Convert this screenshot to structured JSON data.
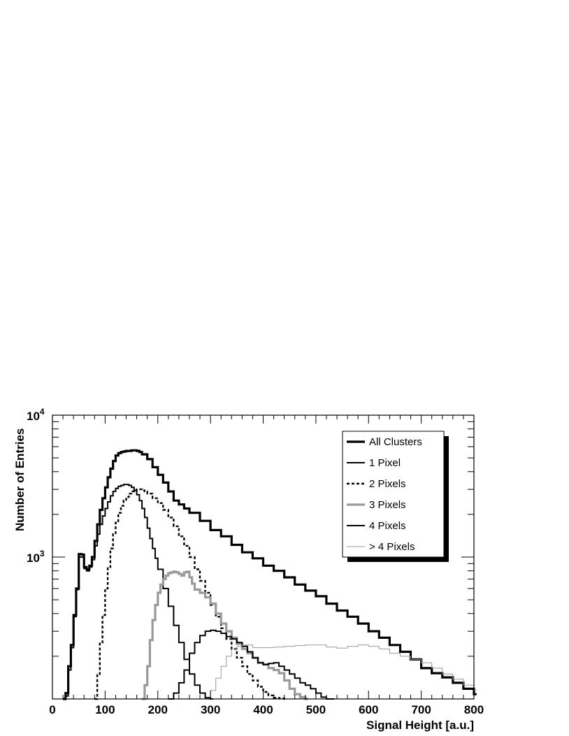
{
  "chart_data": {
    "type": "line",
    "xlabel": "Signal Height [a.u.]",
    "ylabel": "Number of Entries",
    "xlim": [
      0,
      800
    ],
    "ylim": [
      100,
      10000
    ],
    "yscale": "log",
    "grid": false,
    "legend_position": "top-right",
    "x_ticks": [
      "0",
      "100",
      "200",
      "300",
      "400",
      "500",
      "600",
      "700",
      "800"
    ],
    "y_ticks": [
      {
        "base": "10",
        "exp": "3",
        "value": 1000
      },
      {
        "base": "10",
        "exp": "4",
        "value": 10000
      }
    ],
    "series": [
      {
        "name": "All Clusters",
        "color": "#000000",
        "style": "thick-solid",
        "x": [
          20,
          25,
          30,
          35,
          40,
          45,
          50,
          55,
          60,
          65,
          70,
          75,
          80,
          85,
          90,
          95,
          100,
          105,
          110,
          115,
          120,
          125,
          130,
          135,
          140,
          145,
          150,
          155,
          160,
          165,
          170,
          180,
          190,
          200,
          210,
          220,
          230,
          240,
          250,
          260,
          280,
          300,
          320,
          340,
          360,
          380,
          400,
          420,
          440,
          460,
          480,
          500,
          520,
          540,
          560,
          580,
          600,
          620,
          640,
          660,
          680,
          700,
          720,
          740,
          760,
          780,
          800
        ],
        "y": [
          100,
          110,
          170,
          240,
          390,
          600,
          1050,
          1040,
          850,
          820,
          870,
          1000,
          1300,
          1700,
          2150,
          2600,
          3100,
          3650,
          4200,
          4750,
          5200,
          5400,
          5500,
          5550,
          5600,
          5600,
          5650,
          5650,
          5600,
          5500,
          5300,
          4900,
          4300,
          3800,
          3350,
          2900,
          2500,
          2350,
          2200,
          2050,
          1800,
          1550,
          1400,
          1220,
          1080,
          980,
          870,
          800,
          720,
          640,
          580,
          530,
          470,
          420,
          380,
          340,
          300,
          270,
          240,
          215,
          190,
          165,
          152,
          142,
          130,
          118,
          108
        ]
      },
      {
        "name": "1 Pixel",
        "color": "#000000",
        "style": "solid",
        "x": [
          20,
          25,
          30,
          35,
          40,
          45,
          50,
          55,
          60,
          65,
          70,
          75,
          80,
          85,
          90,
          95,
          100,
          105,
          110,
          115,
          120,
          125,
          130,
          135,
          140,
          145,
          150,
          155,
          160,
          165,
          170,
          175,
          180,
          185,
          190,
          195,
          200,
          210,
          220,
          230,
          240,
          250,
          260,
          270,
          280,
          290,
          300
        ],
        "y": [
          100,
          105,
          160,
          230,
          380,
          590,
          1000,
          1000,
          830,
          800,
          850,
          960,
          1200,
          1450,
          1700,
          1950,
          2200,
          2450,
          2700,
          2900,
          3050,
          3150,
          3200,
          3250,
          3250,
          3200,
          3100,
          2950,
          2750,
          2500,
          2200,
          1900,
          1600,
          1350,
          1150,
          980,
          820,
          600,
          450,
          330,
          250,
          190,
          150,
          125,
          110,
          102,
          100
        ]
      },
      {
        "name": "2 Pixels",
        "color": "#000000",
        "style": "dotted",
        "x": [
          80,
          85,
          90,
          95,
          100,
          105,
          110,
          115,
          120,
          125,
          130,
          135,
          140,
          145,
          150,
          155,
          160,
          165,
          170,
          175,
          180,
          190,
          200,
          210,
          220,
          230,
          240,
          250,
          260,
          270,
          280,
          290,
          300,
          310,
          320,
          330,
          340,
          350,
          360,
          370,
          380,
          390,
          400,
          410,
          420,
          430,
          440
        ],
        "y": [
          100,
          150,
          250,
          390,
          600,
          850,
          1150,
          1450,
          1750,
          2050,
          2300,
          2500,
          2650,
          2800,
          2900,
          2950,
          3000,
          3000,
          2950,
          2900,
          2800,
          2600,
          2400,
          2150,
          1900,
          1650,
          1400,
          1200,
          1000,
          820,
          680,
          560,
          460,
          380,
          315,
          265,
          225,
          195,
          170,
          150,
          135,
          122,
          112,
          106,
          102,
          101,
          100
        ]
      },
      {
        "name": "3 Pixels",
        "color": "#999999",
        "style": "thick-solid",
        "x": [
          170,
          175,
          180,
          185,
          190,
          195,
          200,
          205,
          210,
          215,
          220,
          225,
          230,
          235,
          240,
          245,
          250,
          255,
          260,
          265,
          270,
          280,
          290,
          300,
          310,
          320,
          330,
          340,
          350,
          360,
          370,
          380,
          390,
          400,
          410,
          420,
          430,
          440,
          450,
          460,
          470,
          480
        ],
        "y": [
          100,
          125,
          170,
          260,
          360,
          460,
          560,
          640,
          700,
          740,
          770,
          780,
          790,
          780,
          760,
          740,
          780,
          790,
          720,
          650,
          590,
          560,
          520,
          470,
          400,
          340,
          300,
          270,
          245,
          225,
          210,
          195,
          180,
          175,
          165,
          160,
          152,
          135,
          118,
          108,
          103,
          100
        ]
      },
      {
        "name": "4 Pixels",
        "color": "#000000",
        "style": "solid",
        "x": [
          220,
          230,
          240,
          250,
          260,
          270,
          280,
          290,
          300,
          310,
          320,
          330,
          340,
          350,
          360,
          370,
          380,
          390,
          400,
          410,
          420,
          430,
          440,
          450,
          460,
          470,
          480,
          490,
          500,
          510,
          520,
          530
        ],
        "y": [
          100,
          110,
          130,
          160,
          210,
          250,
          280,
          300,
          305,
          300,
          290,
          275,
          265,
          250,
          235,
          215,
          195,
          180,
          175,
          178,
          180,
          170,
          160,
          150,
          140,
          130,
          125,
          118,
          110,
          103,
          100,
          100
        ]
      },
      {
        "name": "> 4 Pixels",
        "color": "#999999",
        "style": "thin-solid",
        "x": [
          290,
          300,
          310,
          320,
          330,
          340,
          350,
          360,
          370,
          380,
          400,
          420,
          440,
          460,
          480,
          500,
          520,
          540,
          560,
          580,
          600,
          620,
          640,
          660,
          680,
          700,
          720,
          740,
          760,
          780,
          800
        ],
        "y": [
          100,
          115,
          140,
          170,
          200,
          225,
          235,
          240,
          240,
          230,
          230,
          232,
          235,
          238,
          240,
          240,
          232,
          228,
          235,
          240,
          235,
          225,
          210,
          200,
          190,
          180,
          165,
          150,
          138,
          125,
          115
        ]
      }
    ]
  }
}
